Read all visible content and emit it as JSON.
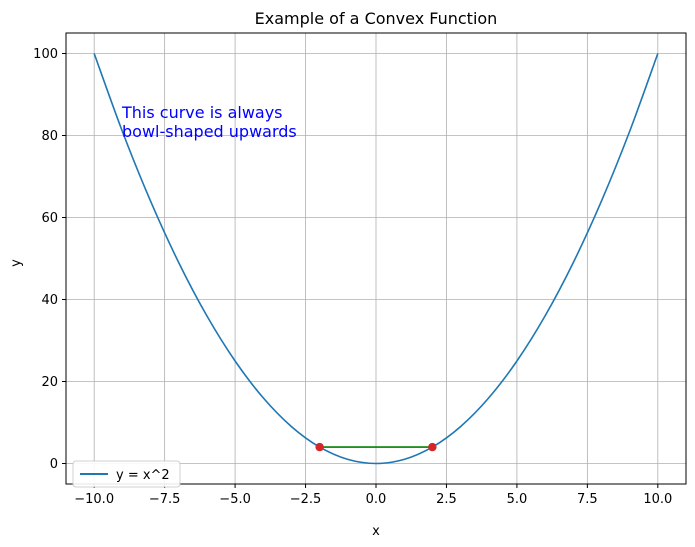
{
  "chart_data": {
    "type": "line",
    "title": "Example of a Convex Function",
    "xlabel": "x",
    "ylabel": "y",
    "xlim": [
      -11,
      11
    ],
    "ylim": [
      -5,
      105
    ],
    "x_ticks": [
      -10.0,
      -7.5,
      -5.0,
      -2.5,
      0.0,
      2.5,
      5.0,
      7.5,
      10.0
    ],
    "x_tick_labels": [
      "−10.0",
      "−7.5",
      "−5.0",
      "−2.5",
      "0.0",
      "2.5",
      "5.0",
      "7.5",
      "10.0"
    ],
    "y_ticks": [
      0,
      20,
      40,
      60,
      80,
      100
    ],
    "y_tick_labels": [
      "0",
      "20",
      "40",
      "60",
      "80",
      "100"
    ],
    "grid": true,
    "legend_position": "lower-left",
    "series": [
      {
        "name": "y = x^2",
        "color": "#1f77b4",
        "x": [
          -10,
          -9,
          -8,
          -7,
          -6,
          -5,
          -4,
          -3,
          -2,
          -1,
          0,
          1,
          2,
          3,
          4,
          5,
          6,
          7,
          8,
          9,
          10
        ],
        "y": [
          100,
          81,
          64,
          49,
          36,
          25,
          16,
          9,
          4,
          1,
          0,
          1,
          4,
          9,
          16,
          25,
          36,
          49,
          64,
          81,
          100
        ]
      }
    ],
    "points": {
      "color": "#d62728",
      "x": [
        -2,
        2
      ],
      "y": [
        4,
        4
      ]
    },
    "segment": {
      "color": "#008000",
      "x": [
        -2,
        2
      ],
      "y": [
        4,
        4
      ]
    },
    "annotation": {
      "lines": [
        "This curve is always",
        "bowl-shaped upwards"
      ],
      "x": -9,
      "y": 80,
      "color": "#0000ff"
    }
  }
}
